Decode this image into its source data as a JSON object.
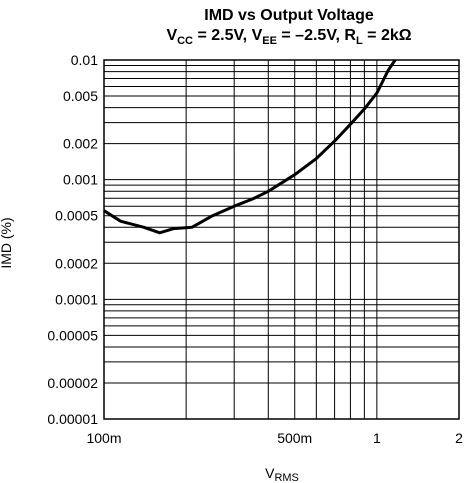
{
  "chart_data": {
    "type": "line",
    "title": "IMD vs Output Voltage",
    "subtitle_parts": {
      "vcc_main": "V",
      "vcc_sub": "CC",
      "vcc_value": " = 2.5V, V",
      "vee_sub": "EE",
      "vee_value": " = –2.5V, R",
      "rl_sub": "L",
      "rl_value": " = 2kΩ"
    },
    "xlabel_main": "V",
    "xlabel_sub": "RMS",
    "ylabel": "IMD (%)",
    "x_scale": "log",
    "y_scale": "log",
    "xlim": [
      0.1,
      2
    ],
    "ylim": [
      1e-05,
      0.01
    ],
    "grid": true,
    "x_ticks": [
      {
        "value": 0.1,
        "label": "100m"
      },
      {
        "value": 0.5,
        "label": "500m"
      },
      {
        "value": 1,
        "label": "1"
      },
      {
        "value": 2,
        "label": "2"
      }
    ],
    "y_ticks": [
      {
        "value": 0.01,
        "label": "0.01"
      },
      {
        "value": 0.005,
        "label": "0.005"
      },
      {
        "value": 0.002,
        "label": "0.002"
      },
      {
        "value": 0.001,
        "label": "0.001"
      },
      {
        "value": 0.0005,
        "label": "0.0005"
      },
      {
        "value": 0.0002,
        "label": "0.0002"
      },
      {
        "value": 0.0001,
        "label": "0.0001"
      },
      {
        "value": 5e-05,
        "label": "0.00005"
      },
      {
        "value": 2e-05,
        "label": "0.00002"
      },
      {
        "value": 1e-05,
        "label": "0.00001"
      }
    ],
    "series": [
      {
        "x": [
          0.1,
          0.115,
          0.14,
          0.16,
          0.18,
          0.21,
          0.25,
          0.3,
          0.35,
          0.4,
          0.5,
          0.6,
          0.7,
          0.8,
          0.9,
          1.0,
          1.1,
          1.2
        ],
        "values": [
          0.00055,
          0.00045,
          0.0004,
          0.00036,
          0.00039,
          0.0004,
          0.0005,
          0.0006,
          0.00069,
          0.0008,
          0.0011,
          0.0015,
          0.0021,
          0.0029,
          0.0039,
          0.0053,
          0.0082,
          0.011
        ]
      }
    ],
    "colors": {
      "line": "#000000",
      "grid": "#000000",
      "background": "#ffffff"
    }
  }
}
